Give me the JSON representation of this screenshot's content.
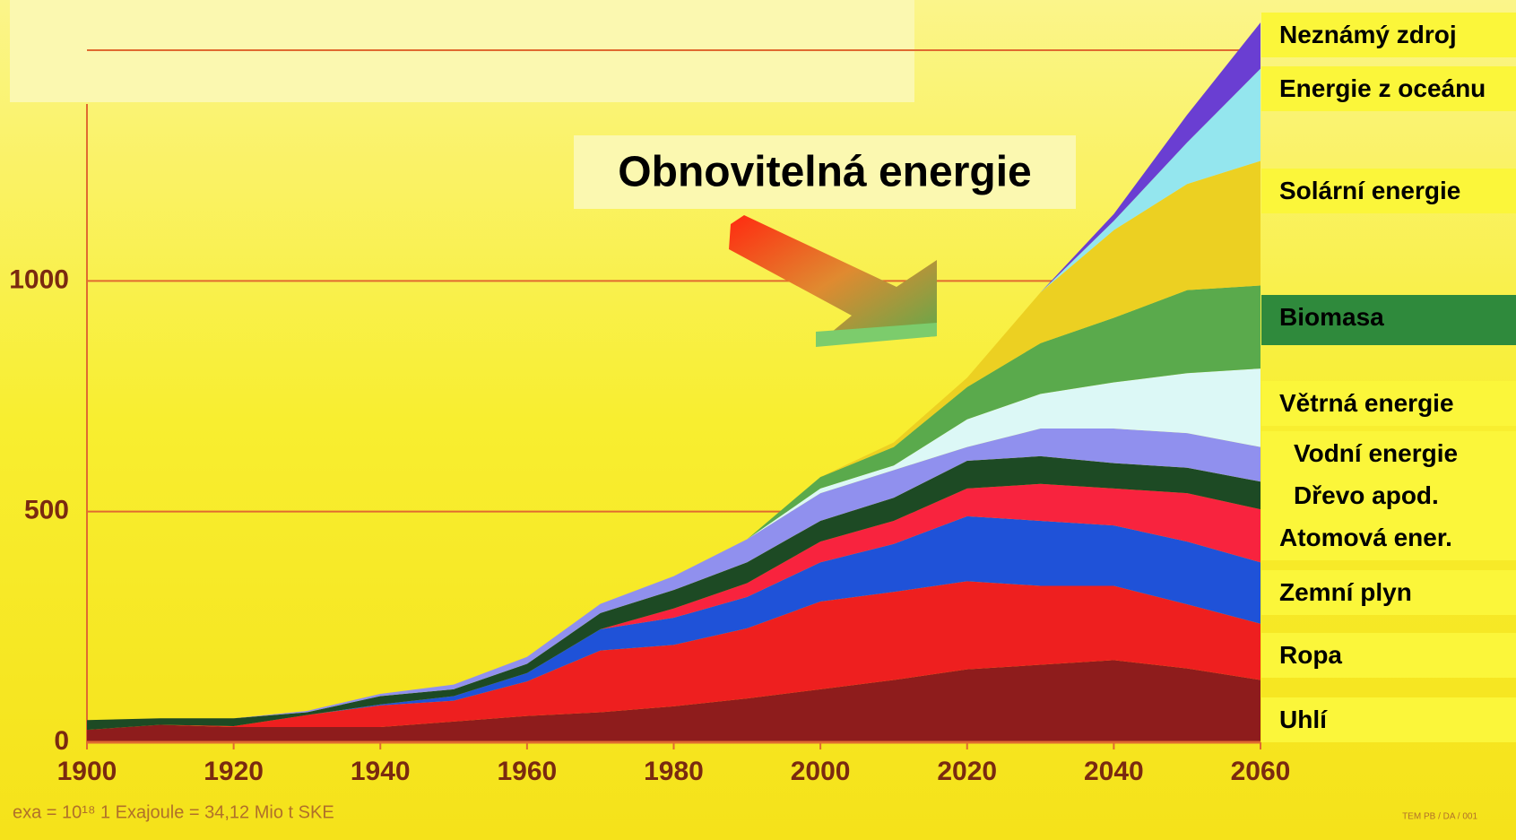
{
  "chart_data": {
    "type": "stacked_area",
    "annotation": "Obnovitelná energie",
    "footnote": "exa = 10¹⁸ 1 Exajoule = 34,12 Mio t SKE",
    "code": "TEM PB / DA / 001",
    "x": [
      1900,
      1910,
      1920,
      1930,
      1940,
      1950,
      1960,
      1970,
      1980,
      1990,
      2000,
      2010,
      2020,
      2030,
      2040,
      2050,
      2060
    ],
    "xlim": [
      1900,
      2060
    ],
    "xticks": [
      1900,
      1920,
      1940,
      1960,
      1980,
      2000,
      2020,
      2040,
      2060
    ],
    "ylim": [
      0,
      1500
    ],
    "yticks": [
      0,
      500,
      1000
    ],
    "grid": true,
    "series": [
      {
        "name": "Uhlí",
        "color": "#8e1c1c",
        "values": [
          27,
          38,
          33,
          33,
          33,
          45,
          57,
          65,
          78,
          95,
          115,
          135,
          158,
          168,
          178,
          160,
          135
        ]
      },
      {
        "name": "Ropa",
        "color": "#ee1f1f",
        "values": [
          0,
          0,
          2,
          26,
          47,
          45,
          75,
          134,
          133,
          152,
          190,
          191,
          191,
          171,
          161,
          139,
          122
        ]
      },
      {
        "name": "Zemní plyn",
        "color": "#1f52d8",
        "values": [
          0,
          0,
          0,
          0,
          2,
          10,
          18,
          46,
          59,
          68,
          85,
          104,
          141,
          141,
          131,
          136,
          133
        ]
      },
      {
        "name": "Atomová ener.",
        "color": "#f8233e",
        "values": [
          0,
          0,
          0,
          0,
          0,
          0,
          0,
          0,
          20,
          30,
          45,
          50,
          60,
          80,
          80,
          105,
          115
        ]
      },
      {
        "name": "Dřevo apod.",
        "color": "#1d4a24",
        "values": [
          21,
          14,
          17,
          6,
          18,
          15,
          20,
          35,
          40,
          45,
          45,
          50,
          60,
          60,
          55,
          55,
          60
        ]
      },
      {
        "name": "Vodní energie",
        "color": "#9090ee",
        "values": [
          0,
          0,
          0,
          3,
          5,
          10,
          15,
          20,
          30,
          50,
          60,
          60,
          30,
          60,
          75,
          75,
          75
        ]
      },
      {
        "name": "Větrná energie",
        "color": "#dcf8f6",
        "values": [
          0,
          0,
          0,
          0,
          0,
          0,
          0,
          0,
          0,
          0,
          10,
          10,
          60,
          75,
          100,
          130,
          170
        ]
      },
      {
        "name": "Biomasa",
        "color": "#5aaa4c",
        "values": [
          0,
          0,
          0,
          0,
          0,
          0,
          0,
          0,
          0,
          0,
          25,
          40,
          70,
          110,
          140,
          180,
          180
        ]
      },
      {
        "name": "Solární energie",
        "color": "#ecd022",
        "values": [
          0,
          0,
          0,
          0,
          0,
          0,
          0,
          0,
          0,
          0,
          0,
          10,
          20,
          110,
          190,
          230,
          270
        ]
      },
      {
        "name": "Energie z oceánu",
        "color": "#94e6ee",
        "values": [
          0,
          0,
          0,
          0,
          0,
          0,
          0,
          0,
          0,
          0,
          0,
          0,
          0,
          0,
          20,
          90,
          200
        ]
      },
      {
        "name": "Neznámý zdroj",
        "color": "#6a3ed2",
        "values": [
          0,
          0,
          0,
          0,
          0,
          0,
          0,
          0,
          0,
          0,
          0,
          0,
          0,
          0,
          15,
          60,
          100
        ]
      }
    ]
  }
}
